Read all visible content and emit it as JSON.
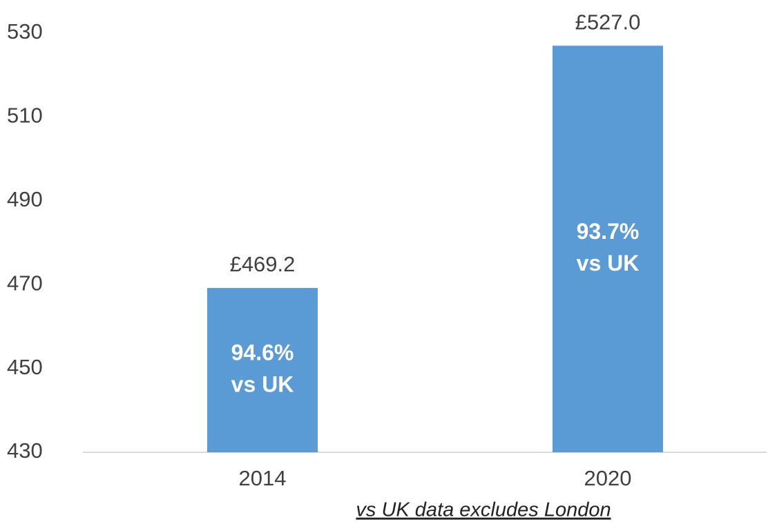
{
  "chart_data": {
    "type": "bar",
    "categories": [
      "2014",
      "2020"
    ],
    "values": [
      469.2,
      527.0
    ],
    "value_labels": [
      "£469.2",
      "£527.0"
    ],
    "annotations": [
      [
        "94.6%",
        "vs UK"
      ],
      [
        "93.7%",
        "vs UK"
      ]
    ],
    "footnote": "vs UK data excludes London",
    "color": "#5b9bd5",
    "ylim": [
      430,
      530
    ],
    "yticks": [
      430,
      450,
      470,
      490,
      510,
      530
    ],
    "grid": false
  }
}
